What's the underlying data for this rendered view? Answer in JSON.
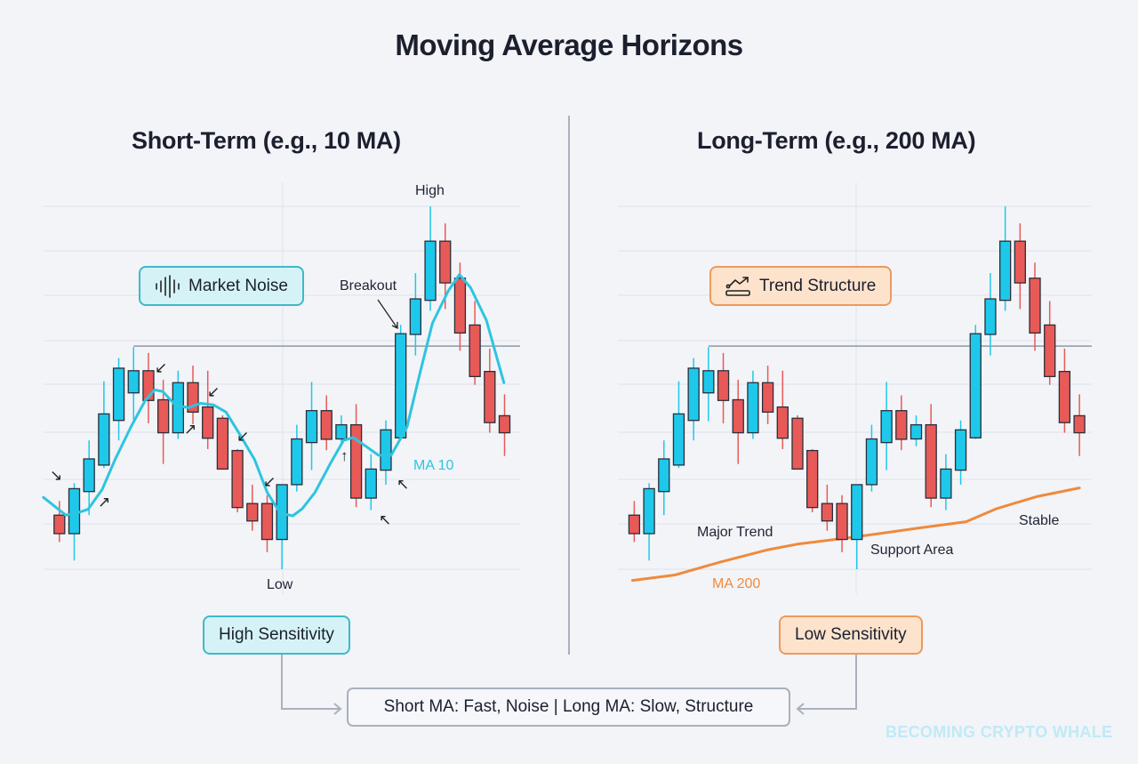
{
  "title": "Moving Average Horizons",
  "left": {
    "heading": "Short-Term (e.g., 10 MA)",
    "badge": {
      "icon": "sound-wave-icon",
      "label": "Market Noise"
    },
    "labels": {
      "high": "High",
      "low": "Low",
      "breakout": "Breakout",
      "ma": "MA 10"
    },
    "sensitivity": "High Sensitivity",
    "ma_points": [
      [
        -1.08,
        19.8
      ],
      [
        0.43,
        14.9
      ],
      [
        1.18,
        15.5
      ],
      [
        1.93,
        16.5
      ],
      [
        2.89,
        22.0
      ],
      [
        3.75,
        30.2
      ],
      [
        4.82,
        39.2
      ],
      [
        5.78,
        46.5
      ],
      [
        6.42,
        49.4
      ],
      [
        6.96,
        49.0
      ],
      [
        7.81,
        45.3
      ],
      [
        8.67,
        44.5
      ],
      [
        9.52,
        45.7
      ],
      [
        10.38,
        45.3
      ],
      [
        11.23,
        43.3
      ],
      [
        12.09,
        37.6
      ],
      [
        13.16,
        30.2
      ],
      [
        14.0,
        21.2
      ],
      [
        14.87,
        15.5
      ],
      [
        15.73,
        14.7
      ],
      [
        16.37,
        16.7
      ],
      [
        17.23,
        21.2
      ],
      [
        18.3,
        29.4
      ],
      [
        19.15,
        35.5
      ],
      [
        19.8,
        36.3
      ],
      [
        20.65,
        33.9
      ],
      [
        21.51,
        31.4
      ],
      [
        22.36,
        31.4
      ],
      [
        23.43,
        39.2
      ],
      [
        24.29,
        53.9
      ],
      [
        25.14,
        67.8
      ],
      [
        26.21,
        76.7
      ],
      [
        26.96,
        81.2
      ],
      [
        27.71,
        77.6
      ],
      [
        28.78,
        68.6
      ],
      [
        29.96,
        51.4
      ]
    ]
  },
  "right": {
    "heading": "Long-Term (e.g., 200 MA)",
    "badge": {
      "icon": "trend-chart-icon",
      "label": "Trend Structure"
    },
    "labels": {
      "major": "Major Trend",
      "support": "Support Area",
      "stable": "Stable",
      "ma": "MA 200"
    },
    "sensitivity": "Low Sensitivity",
    "ma_points": [
      [
        -0.12,
        -3.1
      ],
      [
        2.73,
        -1.6
      ],
      [
        5.83,
        2.0
      ],
      [
        8.93,
        5.3
      ],
      [
        11.0,
        6.9
      ],
      [
        14.7,
        8.8
      ],
      [
        17.19,
        10.2
      ],
      [
        19.26,
        11.4
      ],
      [
        22.36,
        13.1
      ],
      [
        24.42,
        16.7
      ],
      [
        27.11,
        20.0
      ],
      [
        30,
        22.4
      ]
    ]
  },
  "summary": "Short MA: Fast, Noise | Long MA: Slow, Structure",
  "watermark": "BECOMING CRYPTO WHALE",
  "resistance_level": 61.5,
  "candles": [
    [
      14.9,
      18.8,
      7.5,
      9.8
    ],
    [
      9.8,
      23.7,
      2.4,
      22.2
    ],
    [
      21.4,
      35.5,
      14.9,
      30.4
    ],
    [
      28.7,
      51.8,
      27.9,
      42.8
    ],
    [
      41.0,
      58.2,
      35.5,
      55.4
    ],
    [
      48.6,
      61.2,
      40.8,
      54.7
    ],
    [
      54.7,
      59.6,
      40.2,
      46.5
    ],
    [
      46.7,
      52.2,
      29.0,
      37.6
    ],
    [
      37.6,
      54.7,
      35.9,
      51.4
    ],
    [
      51.4,
      56.1,
      40.0,
      43.3
    ],
    [
      44.7,
      54.7,
      33.1,
      36.1
    ],
    [
      41.6,
      42.4,
      27.6,
      27.6
    ],
    [
      32.7,
      33.1,
      15.7,
      17.0
    ],
    [
      18.1,
      23.3,
      10.6,
      13.3
    ],
    [
      18.1,
      20.4,
      4.7,
      8.2
    ],
    [
      8.2,
      23.3,
      0,
      23.3
    ],
    [
      23.3,
      39.8,
      21.4,
      35.9
    ],
    [
      34.9,
      51.6,
      27.3,
      43.7
    ],
    [
      43.7,
      47.9,
      32.8,
      35.8
    ],
    [
      35.9,
      42.4,
      33.9,
      39.8
    ],
    [
      39.8,
      45.5,
      17.1,
      19.6
    ],
    [
      19.6,
      31.7,
      16.3,
      27.6
    ],
    [
      27.3,
      41.0,
      23.3,
      38.4
    ],
    [
      36.2,
      67.3,
      35.9,
      64.9
    ],
    [
      64.7,
      81.6,
      58.9,
      74.5
    ],
    [
      74.1,
      100,
      71.2,
      90.4
    ],
    [
      90.4,
      95.3,
      71.7,
      78.9
    ],
    [
      80.2,
      84.5,
      60.2,
      65.1
    ],
    [
      67.3,
      73.9,
      50.8,
      53.1
    ],
    [
      54.5,
      60.8,
      37.6,
      40.4
    ],
    [
      42.3,
      48.2,
      31.2,
      37.6
    ]
  ],
  "colors": {
    "bull": "#1ec8ea",
    "bear": "#e85a57",
    "ma_short": "#2ec4e0",
    "ma_long": "#ef8a3c",
    "background": "#f2f4f8"
  }
}
